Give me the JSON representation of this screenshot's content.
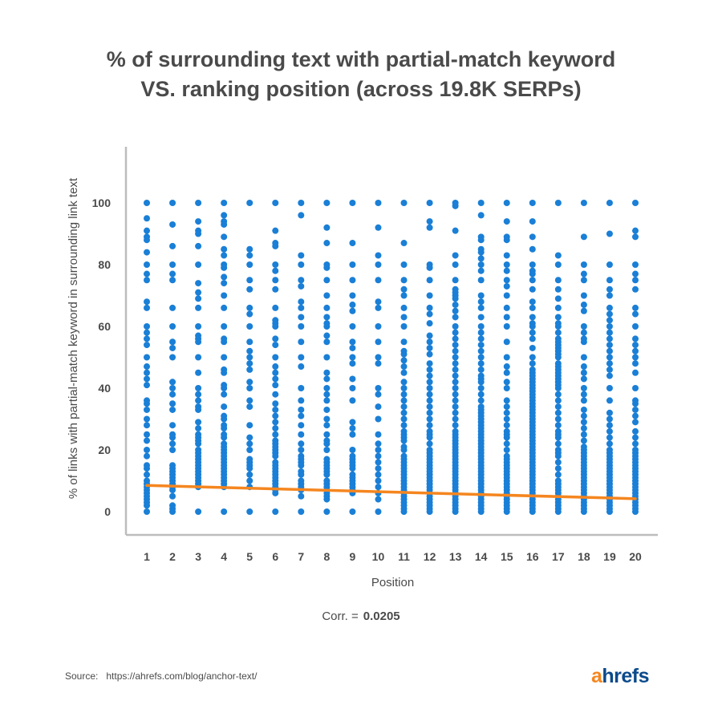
{
  "title_lines": [
    "% of surrounding text with partial-match keyword",
    "VS. ranking position (across 19.8K SERPs)"
  ],
  "correlation": {
    "label": "Corr. =",
    "value": "0.0205"
  },
  "source": {
    "label": "Source:",
    "url": "https://ahrefs.com/blog/anchor-text/"
  },
  "logo": {
    "first": "a",
    "rest": "hrefs"
  },
  "colors": {
    "points": "#1a7fd6",
    "trend": "#f5861f",
    "axis": "#bdbdbd",
    "text": "#4a4a4a"
  },
  "chart_data": {
    "type": "scatter",
    "title": "% of surrounding text with partial-match keyword VS. ranking position (across 19.8K SERPs)",
    "xlabel": "Position",
    "ylabel": "% of links with partial-match keyword in surrounding link text",
    "xlim": [
      0.2,
      20.8
    ],
    "ylim": [
      -7,
      118
    ],
    "x_ticks": [
      1,
      2,
      3,
      4,
      5,
      6,
      7,
      8,
      9,
      10,
      11,
      12,
      13,
      14,
      15,
      16,
      17,
      18,
      19,
      20
    ],
    "y_ticks": [
      0,
      20,
      40,
      60,
      80,
      100
    ],
    "grid": false,
    "series": [
      {
        "points_by_position": [
          {
            "x": 1,
            "y": [
              100,
              95,
              91,
              89,
              88,
              84,
              80,
              77,
              75,
              68,
              66,
              60,
              58,
              56,
              54,
              50,
              47,
              45,
              43,
              41,
              36,
              35,
              33,
              30,
              28,
              25,
              23,
              20,
              18,
              15,
              14,
              12,
              10,
              9,
              8,
              7,
              6,
              5,
              4,
              3,
              2,
              0
            ]
          },
          {
            "x": 2,
            "y": [
              100,
              93,
              86,
              80,
              77,
              75,
              66,
              60,
              55,
              53,
              50,
              42,
              40,
              38,
              35,
              33,
              28,
              25,
              24,
              22,
              20,
              15,
              14,
              13,
              12,
              11,
              10,
              9,
              8,
              7,
              5,
              2,
              1,
              0
            ]
          },
          {
            "x": 3,
            "y": [
              100,
              94,
              91,
              90,
              86,
              80,
              74,
              71,
              69,
              66,
              60,
              57,
              56,
              55,
              50,
              45,
              40,
              38,
              36,
              34,
              33,
              29,
              27,
              25,
              24,
              23,
              22,
              20,
              19,
              18,
              17,
              16,
              15,
              14,
              13,
              12,
              11,
              10,
              9,
              8,
              0
            ]
          },
          {
            "x": 4,
            "y": [
              100,
              96,
              94,
              93,
              89,
              85,
              83,
              80,
              79,
              76,
              74,
              70,
              66,
              60,
              56,
              55,
              50,
              46,
              45,
              41,
              40,
              38,
              34,
              31,
              30,
              28,
              27,
              25,
              24,
              22,
              21,
              20,
              19,
              18,
              17,
              16,
              15,
              14,
              13,
              12,
              11,
              10,
              9,
              8,
              0
            ]
          },
          {
            "x": 5,
            "y": [
              100,
              85,
              83,
              80,
              75,
              72,
              66,
              64,
              60,
              55,
              52,
              50,
              48,
              46,
              42,
              40,
              36,
              34,
              28,
              24,
              22,
              20,
              17,
              16,
              15,
              14,
              12,
              10,
              8,
              0
            ]
          },
          {
            "x": 6,
            "y": [
              100,
              91,
              87,
              86,
              80,
              78,
              75,
              72,
              66,
              62,
              61,
              60,
              56,
              54,
              50,
              47,
              45,
              43,
              41,
              38,
              35,
              33,
              31,
              29,
              27,
              25,
              23,
              22,
              21,
              20,
              19,
              18,
              16,
              15,
              14,
              13,
              12,
              11,
              10,
              9,
              8,
              7,
              6,
              0
            ]
          },
          {
            "x": 7,
            "y": [
              100,
              96,
              83,
              80,
              75,
              73,
              68,
              66,
              63,
              60,
              55,
              50,
              47,
              40,
              36,
              33,
              31,
              28,
              25,
              22,
              20,
              18,
              17,
              16,
              15,
              13,
              12,
              10,
              9,
              8,
              7,
              5,
              0
            ]
          },
          {
            "x": 8,
            "y": [
              100,
              92,
              87,
              80,
              79,
              75,
              70,
              66,
              63,
              61,
              60,
              57,
              55,
              50,
              45,
              43,
              40,
              38,
              36,
              33,
              30,
              28,
              25,
              23,
              22,
              20,
              17,
              16,
              15,
              14,
              13,
              12,
              10,
              9,
              8,
              7,
              6,
              5,
              4,
              0
            ]
          },
          {
            "x": 9,
            "y": [
              100,
              87,
              80,
              75,
              70,
              67,
              65,
              60,
              55,
              53,
              50,
              48,
              43,
              40,
              36,
              29,
              27,
              25,
              20,
              18,
              17,
              16,
              15,
              14,
              12,
              11,
              10,
              9,
              8,
              7,
              6,
              0
            ]
          },
          {
            "x": 10,
            "y": [
              100,
              92,
              83,
              80,
              75,
              68,
              66,
              60,
              55,
              50,
              48,
              40,
              38,
              34,
              30,
              25,
              22,
              20,
              18,
              16,
              14,
              12,
              10,
              8,
              6,
              4,
              0
            ]
          },
          {
            "x": 11,
            "y": [
              100,
              87,
              80,
              75,
              72,
              70,
              66,
              63,
              60,
              55,
              52,
              51,
              49,
              47,
              45,
              42,
              40,
              38,
              36,
              34,
              32,
              30,
              28,
              26,
              25,
              24,
              23,
              21,
              20,
              18,
              17,
              16,
              15,
              14,
              13,
              12,
              11,
              10,
              9,
              8,
              7,
              6,
              5,
              4,
              3,
              2,
              1,
              0
            ]
          },
          {
            "x": 12,
            "y": [
              100,
              94,
              92,
              80,
              79,
              75,
              70,
              66,
              64,
              61,
              57,
              55,
              53,
              51,
              48,
              46,
              44,
              42,
              40,
              38,
              36,
              34,
              32,
              30,
              28,
              26,
              25,
              24,
              22,
              20,
              19,
              18,
              17,
              16,
              15,
              14,
              13,
              12,
              11,
              10,
              9,
              8,
              7,
              6,
              5,
              4,
              3,
              2,
              1,
              0
            ]
          },
          {
            "x": 13,
            "y": [
              100,
              99,
              91,
              83,
              80,
              75,
              72,
              71,
              70,
              69,
              67,
              65,
              63,
              60,
              58,
              56,
              54,
              52,
              50,
              48,
              46,
              44,
              42,
              40,
              38,
              36,
              34,
              32,
              30,
              28,
              26,
              25,
              24,
              23,
              22,
              21,
              20,
              19,
              18,
              17,
              16,
              15,
              14,
              13,
              12,
              11,
              10,
              9,
              8,
              7,
              6,
              5,
              4,
              3,
              2,
              1,
              0
            ]
          },
          {
            "x": 14,
            "y": [
              100,
              96,
              89,
              88,
              85,
              84,
              82,
              80,
              78,
              75,
              70,
              68,
              66,
              63,
              60,
              58,
              56,
              54,
              52,
              50,
              48,
              46,
              44,
              43,
              42,
              40,
              38,
              36,
              34,
              33,
              32,
              31,
              30,
              29,
              28,
              27,
              26,
              25,
              24,
              23,
              22,
              21,
              20,
              19,
              18,
              17,
              16,
              15,
              14,
              13,
              12,
              11,
              10,
              9,
              8,
              7,
              6,
              5,
              4,
              3,
              2,
              1,
              0
            ]
          },
          {
            "x": 15,
            "y": [
              100,
              94,
              89,
              88,
              83,
              80,
              78,
              75,
              73,
              70,
              66,
              63,
              60,
              55,
              50,
              47,
              45,
              42,
              40,
              36,
              34,
              32,
              30,
              28,
              26,
              25,
              24,
              22,
              20,
              18,
              17,
              16,
              15,
              14,
              13,
              12,
              11,
              10,
              9,
              8,
              7,
              6,
              5,
              4,
              3,
              2,
              1,
              0
            ]
          },
          {
            "x": 16,
            "y": [
              100,
              94,
              89,
              85,
              80,
              78,
              77,
              75,
              72,
              68,
              66,
              63,
              61,
              60,
              58,
              56,
              53,
              50,
              48,
              46,
              45,
              44,
              43,
              42,
              41,
              40,
              39,
              38,
              37,
              36,
              35,
              34,
              33,
              32,
              31,
              30,
              29,
              28,
              27,
              26,
              25,
              24,
              23,
              22,
              21,
              20,
              19,
              18,
              17,
              16,
              15,
              14,
              13,
              12,
              11,
              10,
              9,
              8,
              7,
              6,
              5,
              4,
              3,
              2,
              1,
              0
            ]
          },
          {
            "x": 17,
            "y": [
              100,
              83,
              80,
              75,
              72,
              69,
              66,
              63,
              61,
              60,
              58,
              56,
              55,
              54,
              53,
              52,
              51,
              50,
              48,
              47,
              46,
              45,
              44,
              43,
              42,
              41,
              40,
              38,
              36,
              34,
              32,
              30,
              28,
              26,
              25,
              24,
              22,
              20,
              19,
              18,
              16,
              14,
              12,
              10,
              9,
              8,
              7,
              6,
              5,
              4,
              3,
              2,
              1,
              0
            ]
          },
          {
            "x": 18,
            "y": [
              100,
              89,
              80,
              77,
              75,
              70,
              67,
              65,
              60,
              58,
              56,
              55,
              50,
              47,
              45,
              43,
              40,
              38,
              36,
              33,
              31,
              29,
              27,
              25,
              23,
              21,
              20,
              19,
              18,
              17,
              16,
              15,
              14,
              13,
              12,
              11,
              10,
              9,
              8,
              7,
              6,
              5,
              4,
              3,
              2,
              1,
              0
            ]
          },
          {
            "x": 19,
            "y": [
              100,
              90,
              80,
              75,
              72,
              70,
              66,
              64,
              62,
              60,
              58,
              56,
              54,
              52,
              50,
              48,
              46,
              44,
              40,
              36,
              32,
              30,
              28,
              26,
              24,
              22,
              20,
              19,
              18,
              17,
              16,
              15,
              14,
              13,
              12,
              11,
              10,
              9,
              8,
              7,
              6,
              5,
              4,
              3,
              2,
              1,
              0
            ]
          },
          {
            "x": 20,
            "y": [
              100,
              91,
              89,
              80,
              77,
              75,
              72,
              66,
              64,
              60,
              56,
              54,
              52,
              50,
              48,
              45,
              40,
              36,
              35,
              33,
              31,
              29,
              26,
              24,
              22,
              20,
              19,
              18,
              17,
              16,
              15,
              14,
              13,
              12,
              11,
              10,
              9,
              8,
              7,
              6,
              5,
              4,
              3,
              2,
              1,
              0
            ]
          }
        ]
      }
    ],
    "trendline": {
      "x": [
        1,
        20
      ],
      "y": [
        8.5,
        4.2
      ]
    }
  }
}
